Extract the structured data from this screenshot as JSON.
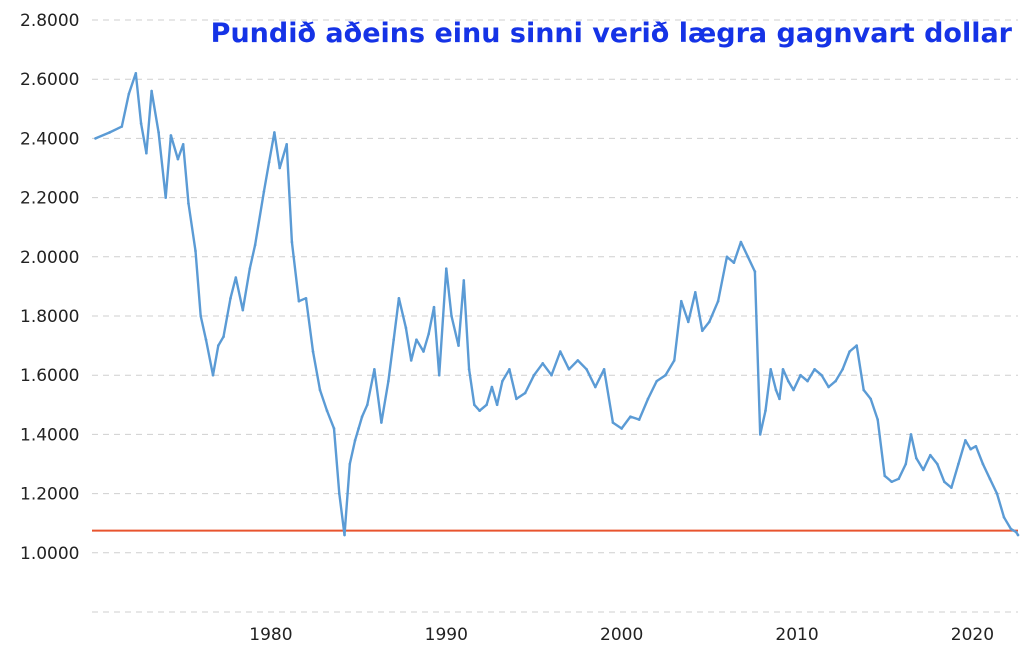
{
  "chart_data": {
    "type": "line",
    "title": "Pundið aðeins einu sinni verið lægra gagnvart dollar",
    "xlabel": "",
    "ylabel": "",
    "xlim": [
      1969.8,
      2022.6
    ],
    "ylim": [
      0.8,
      2.8
    ],
    "y_ticks": [
      1.0,
      1.2,
      1.4,
      1.6,
      1.8,
      2.0,
      2.2,
      2.4,
      2.6,
      2.8
    ],
    "y_tick_labels": [
      "1.0000",
      "1.2000",
      "1.4000",
      "1.6000",
      "1.8000",
      "2.0000",
      "2.2000",
      "2.4000",
      "2.6000",
      "2.8000"
    ],
    "x_ticks": [
      1980,
      1990,
      2000,
      2010,
      2020
    ],
    "x_tick_labels": [
      "1980",
      "1990",
      "2000",
      "2010",
      "2020"
    ],
    "grid": true,
    "series": [
      {
        "color": "#5b9bd5",
        "x": [
          1970.0,
          1970.8,
          1971.5,
          1971.9,
          1972.3,
          1972.6,
          1972.9,
          1973.2,
          1973.6,
          1974.0,
          1974.3,
          1974.7,
          1975.0,
          1975.3,
          1975.7,
          1976.0,
          1976.3,
          1976.7,
          1977.0,
          1977.3,
          1977.7,
          1978.0,
          1978.4,
          1978.8,
          1979.1,
          1979.6,
          1979.9,
          1980.2,
          1980.5,
          1980.9,
          1981.2,
          1981.6,
          1982.0,
          1982.4,
          1982.8,
          1983.2,
          1983.6,
          1983.9,
          1984.2,
          1984.5,
          1984.8,
          1985.0,
          1985.2,
          1985.5,
          1985.9,
          1986.3,
          1986.7,
          1987.0,
          1987.3,
          1987.7,
          1988.0,
          1988.3,
          1988.7,
          1989.0,
          1989.3,
          1989.6,
          1990.0,
          1990.3,
          1990.7,
          1991.0,
          1991.3,
          1991.6,
          1991.9,
          1992.3,
          1992.6,
          1992.9,
          1993.2,
          1993.6,
          1994.0,
          1994.5,
          1995.0,
          1995.5,
          1996.0,
          1996.5,
          1997.0,
          1997.5,
          1998.0,
          1998.5,
          1999.0,
          1999.5,
          2000.0,
          2000.5,
          2001.0,
          2001.5,
          2002.0,
          2002.5,
          2003.0,
          2003.4,
          2003.8,
          2004.2,
          2004.6,
          2005.0,
          2005.5,
          2006.0,
          2006.4,
          2006.8,
          2007.2,
          2007.6,
          2007.9,
          2008.2,
          2008.5,
          2008.8,
          2009.0,
          2009.2,
          2009.5,
          2009.8,
          2010.2,
          2010.6,
          2011.0,
          2011.4,
          2011.8,
          2012.2,
          2012.6,
          2013.0,
          2013.4,
          2013.8,
          2014.2,
          2014.6,
          2015.0,
          2015.4,
          2015.8,
          2016.2,
          2016.5,
          2016.8,
          2017.2,
          2017.6,
          2018.0,
          2018.4,
          2018.8,
          2019.2,
          2019.6,
          2019.9,
          2020.2,
          2020.6,
          2021.0,
          2021.4,
          2021.8,
          2022.2,
          2022.5,
          2022.6
        ],
        "y": [
          2.4,
          2.42,
          2.44,
          2.55,
          2.62,
          2.45,
          2.35,
          2.56,
          2.42,
          2.2,
          2.41,
          2.33,
          2.38,
          2.18,
          2.02,
          1.8,
          1.72,
          1.6,
          1.7,
          1.73,
          1.86,
          1.93,
          1.82,
          1.96,
          2.04,
          2.22,
          2.32,
          2.42,
          2.3,
          2.38,
          2.05,
          1.85,
          1.86,
          1.68,
          1.55,
          1.48,
          1.42,
          1.2,
          1.06,
          1.3,
          1.38,
          1.42,
          1.46,
          1.5,
          1.62,
          1.44,
          1.58,
          1.72,
          1.86,
          1.76,
          1.65,
          1.72,
          1.68,
          1.74,
          1.83,
          1.6,
          1.96,
          1.8,
          1.7,
          1.92,
          1.62,
          1.5,
          1.48,
          1.5,
          1.56,
          1.5,
          1.58,
          1.62,
          1.52,
          1.54,
          1.6,
          1.64,
          1.6,
          1.68,
          1.62,
          1.65,
          1.62,
          1.56,
          1.62,
          1.44,
          1.42,
          1.46,
          1.45,
          1.52,
          1.58,
          1.6,
          1.65,
          1.85,
          1.78,
          1.88,
          1.75,
          1.78,
          1.85,
          2.0,
          1.98,
          2.05,
          2.0,
          1.95,
          1.4,
          1.48,
          1.62,
          1.55,
          1.52,
          1.62,
          1.58,
          1.55,
          1.6,
          1.58,
          1.62,
          1.6,
          1.56,
          1.58,
          1.62,
          1.68,
          1.7,
          1.55,
          1.52,
          1.45,
          1.26,
          1.24,
          1.25,
          1.3,
          1.4,
          1.32,
          1.28,
          1.33,
          1.3,
          1.24,
          1.22,
          1.3,
          1.38,
          1.35,
          1.36,
          1.3,
          1.25,
          1.2,
          1.12,
          1.08,
          1.07,
          1.06
        ],
        "color_label": ""
      }
    ],
    "reference_line": {
      "y": 1.075,
      "color": "#e8542e"
    }
  }
}
